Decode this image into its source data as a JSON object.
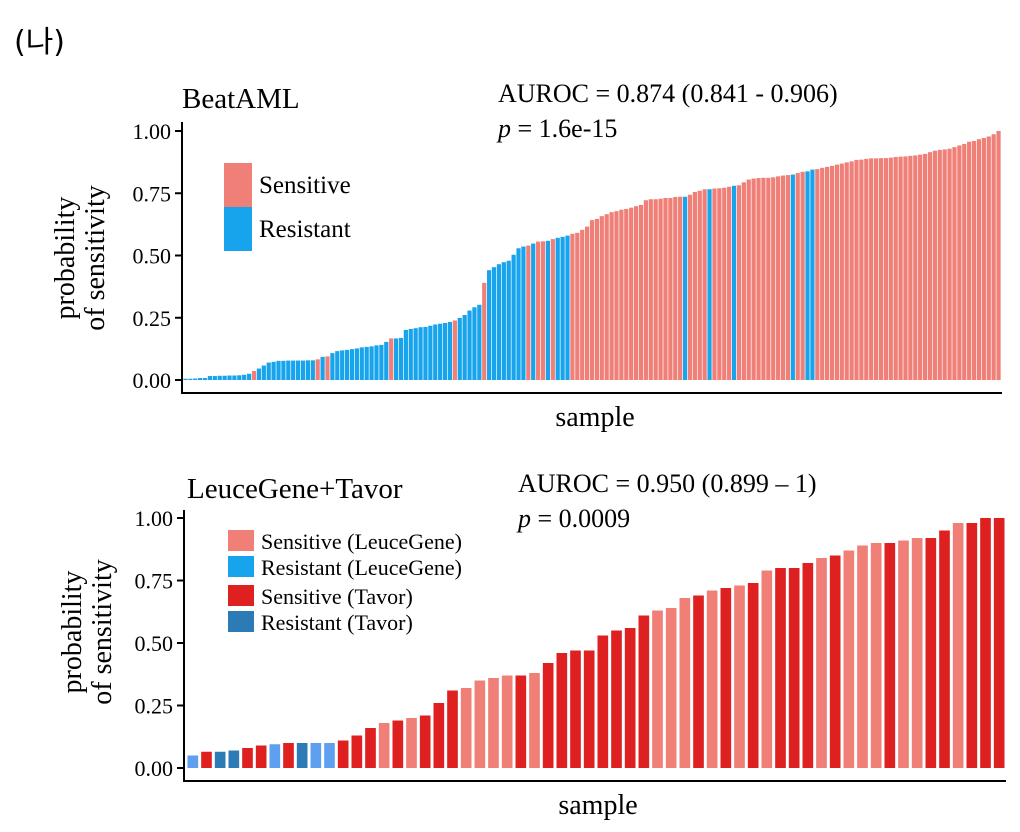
{
  "figure_label": "(나)",
  "colors": {
    "sensitive": "#f07f78",
    "resistant": "#18a4ec",
    "sensitive_leucegene": "#f07f78",
    "resistant_leucegene": "#18a4ec",
    "sensitive_tavor": "#df2020",
    "resistant_tavor": "#2c7bb6",
    "resistant_tavor_light": "#5f9ff0"
  },
  "chart_data": [
    {
      "type": "bar",
      "title": "BeatAML",
      "stat_auroc": "AUROC = 0.874 (0.841 - 0.906)",
      "stat_p": "1.6e-15",
      "p_symbol": "p",
      "p_prefix": " = ",
      "xlabel": "sample",
      "ylabel": [
        "probability",
        "of sensitivity"
      ],
      "ylim": [
        0,
        1.0
      ],
      "yticks": [
        "0.00",
        "0.25",
        "0.50",
        "0.75",
        "1.00"
      ],
      "grid": false,
      "legend": {
        "placement": "top-left",
        "entries": [
          {
            "label": "Sensitive",
            "color_key": "sensitive"
          },
          {
            "label": "Resistant",
            "color_key": "resistant"
          }
        ]
      },
      "x_tick_labels": false,
      "values": [
        0.005,
        0.005,
        0.006,
        0.008,
        0.008,
        0.016,
        0.016,
        0.017,
        0.017,
        0.018,
        0.018,
        0.019,
        0.021,
        0.025,
        0.036,
        0.046,
        0.058,
        0.07,
        0.073,
        0.077,
        0.077,
        0.078,
        0.078,
        0.078,
        0.078,
        0.079,
        0.079,
        0.083,
        0.093,
        0.095,
        0.108,
        0.116,
        0.119,
        0.121,
        0.124,
        0.127,
        0.131,
        0.133,
        0.135,
        0.139,
        0.141,
        0.153,
        0.167,
        0.167,
        0.169,
        0.201,
        0.205,
        0.208,
        0.212,
        0.213,
        0.218,
        0.223,
        0.226,
        0.229,
        0.233,
        0.239,
        0.249,
        0.261,
        0.279,
        0.292,
        0.302,
        0.39,
        0.441,
        0.453,
        0.465,
        0.473,
        0.479,
        0.503,
        0.529,
        0.536,
        0.54,
        0.548,
        0.556,
        0.557,
        0.559,
        0.566,
        0.571,
        0.575,
        0.58,
        0.587,
        0.591,
        0.603,
        0.616,
        0.642,
        0.647,
        0.658,
        0.666,
        0.674,
        0.678,
        0.684,
        0.687,
        0.692,
        0.698,
        0.703,
        0.722,
        0.726,
        0.726,
        0.728,
        0.731,
        0.731,
        0.735,
        0.736,
        0.736,
        0.744,
        0.755,
        0.76,
        0.766,
        0.766,
        0.769,
        0.77,
        0.772,
        0.776,
        0.78,
        0.782,
        0.794,
        0.805,
        0.809,
        0.811,
        0.812,
        0.812,
        0.814,
        0.818,
        0.821,
        0.823,
        0.825,
        0.831,
        0.836,
        0.838,
        0.845,
        0.847,
        0.852,
        0.856,
        0.86,
        0.865,
        0.869,
        0.874,
        0.878,
        0.884,
        0.885,
        0.888,
        0.89,
        0.89,
        0.891,
        0.891,
        0.893,
        0.896,
        0.897,
        0.898,
        0.9,
        0.902,
        0.905,
        0.908,
        0.915,
        0.921,
        0.924,
        0.926,
        0.929,
        0.935,
        0.942,
        0.948,
        0.957,
        0.96,
        0.967,
        0.972,
        0.978,
        0.987,
        1.0
      ],
      "classes": [
        "R",
        "R",
        "R",
        "R",
        "R",
        "R",
        "R",
        "R",
        "R",
        "R",
        "R",
        "R",
        "R",
        "R",
        "S",
        "R",
        "R",
        "R",
        "R",
        "R",
        "R",
        "R",
        "R",
        "R",
        "R",
        "R",
        "R",
        "S",
        "R",
        "S",
        "R",
        "R",
        "R",
        "R",
        "R",
        "R",
        "R",
        "R",
        "R",
        "R",
        "R",
        "R",
        "S",
        "R",
        "R",
        "R",
        "R",
        "R",
        "R",
        "R",
        "R",
        "R",
        "R",
        "R",
        "R",
        "S",
        "R",
        "R",
        "R",
        "R",
        "R",
        "S",
        "R",
        "R",
        "R",
        "R",
        "R",
        "R",
        "R",
        "R",
        "S",
        "R",
        "S",
        "S",
        "R",
        "S",
        "R",
        "R",
        "R",
        "S",
        "S",
        "S",
        "S",
        "S",
        "S",
        "S",
        "S",
        "S",
        "S",
        "S",
        "S",
        "S",
        "S",
        "S",
        "S",
        "S",
        "S",
        "S",
        "S",
        "S",
        "S",
        "S",
        "R",
        "S",
        "S",
        "S",
        "S",
        "R",
        "S",
        "S",
        "S",
        "S",
        "R",
        "S",
        "S",
        "S",
        "S",
        "S",
        "S",
        "S",
        "S",
        "S",
        "S",
        "S",
        "R",
        "S",
        "S",
        "R",
        "R",
        "S",
        "S",
        "S",
        "S",
        "S",
        "S",
        "S",
        "S",
        "S",
        "S",
        "S",
        "S",
        "S",
        "S",
        "S",
        "S",
        "S",
        "S",
        "S",
        "S",
        "S",
        "S",
        "S",
        "S",
        "S",
        "S",
        "S",
        "S",
        "S",
        "S",
        "S",
        "S",
        "S",
        "S",
        "S",
        "S",
        "S",
        "S",
        "S"
      ]
    },
    {
      "type": "bar",
      "title": "LeuceGene+Tavor",
      "stat_auroc": "AUROC = 0.950 (0.899 – 1)",
      "stat_p": "0.0009",
      "p_symbol": "p",
      "p_prefix": " = ",
      "xlabel": "sample",
      "ylabel": [
        "probability",
        "of sensitivity"
      ],
      "ylim": [
        0,
        1.0
      ],
      "yticks": [
        "0.00",
        "0.25",
        "0.50",
        "0.75",
        "1.00"
      ],
      "grid": false,
      "legend": {
        "placement": "top-left",
        "entries": [
          {
            "label": "Sensitive (LeuceGene)",
            "color_key": "sensitive_leucegene"
          },
          {
            "label": "Resistant (LeuceGene)",
            "color_key": "resistant_leucegene"
          },
          {
            "label": "Sensitive (Tavor)",
            "color_key": "sensitive_tavor"
          },
          {
            "label": "Resistant (Tavor)",
            "color_key": "resistant_tavor"
          }
        ]
      },
      "x_tick_labels": false,
      "values": [
        0.05,
        0.065,
        0.065,
        0.07,
        0.08,
        0.09,
        0.095,
        0.1,
        0.1,
        0.1,
        0.1,
        0.11,
        0.13,
        0.16,
        0.18,
        0.19,
        0.2,
        0.21,
        0.26,
        0.31,
        0.32,
        0.35,
        0.36,
        0.37,
        0.37,
        0.38,
        0.42,
        0.46,
        0.47,
        0.47,
        0.53,
        0.55,
        0.56,
        0.61,
        0.63,
        0.64,
        0.68,
        0.69,
        0.71,
        0.72,
        0.73,
        0.74,
        0.79,
        0.8,
        0.8,
        0.82,
        0.84,
        0.85,
        0.87,
        0.89,
        0.9,
        0.9,
        0.91,
        0.92,
        0.92,
        0.95,
        0.98,
        0.98,
        1.0,
        1.0
      ],
      "classes": [
        "RLL",
        "ST",
        "RT",
        "RT",
        "ST",
        "ST",
        "RLL",
        "ST",
        "RT",
        "RLL",
        "RLL",
        "ST",
        "ST",
        "ST",
        "SL",
        "ST",
        "SL",
        "ST",
        "ST",
        "ST",
        "SL",
        "SL",
        "SL",
        "SL",
        "ST",
        "SL",
        "ST",
        "ST",
        "ST",
        "ST",
        "ST",
        "ST",
        "ST",
        "ST",
        "SL",
        "SL",
        "SL",
        "ST",
        "SL",
        "ST",
        "SL",
        "ST",
        "SL",
        "ST",
        "ST",
        "ST",
        "SL",
        "ST",
        "SL",
        "SL",
        "SL",
        "ST",
        "SL",
        "SL",
        "ST",
        "ST",
        "SL",
        "ST",
        "ST",
        "ST"
      ]
    }
  ]
}
